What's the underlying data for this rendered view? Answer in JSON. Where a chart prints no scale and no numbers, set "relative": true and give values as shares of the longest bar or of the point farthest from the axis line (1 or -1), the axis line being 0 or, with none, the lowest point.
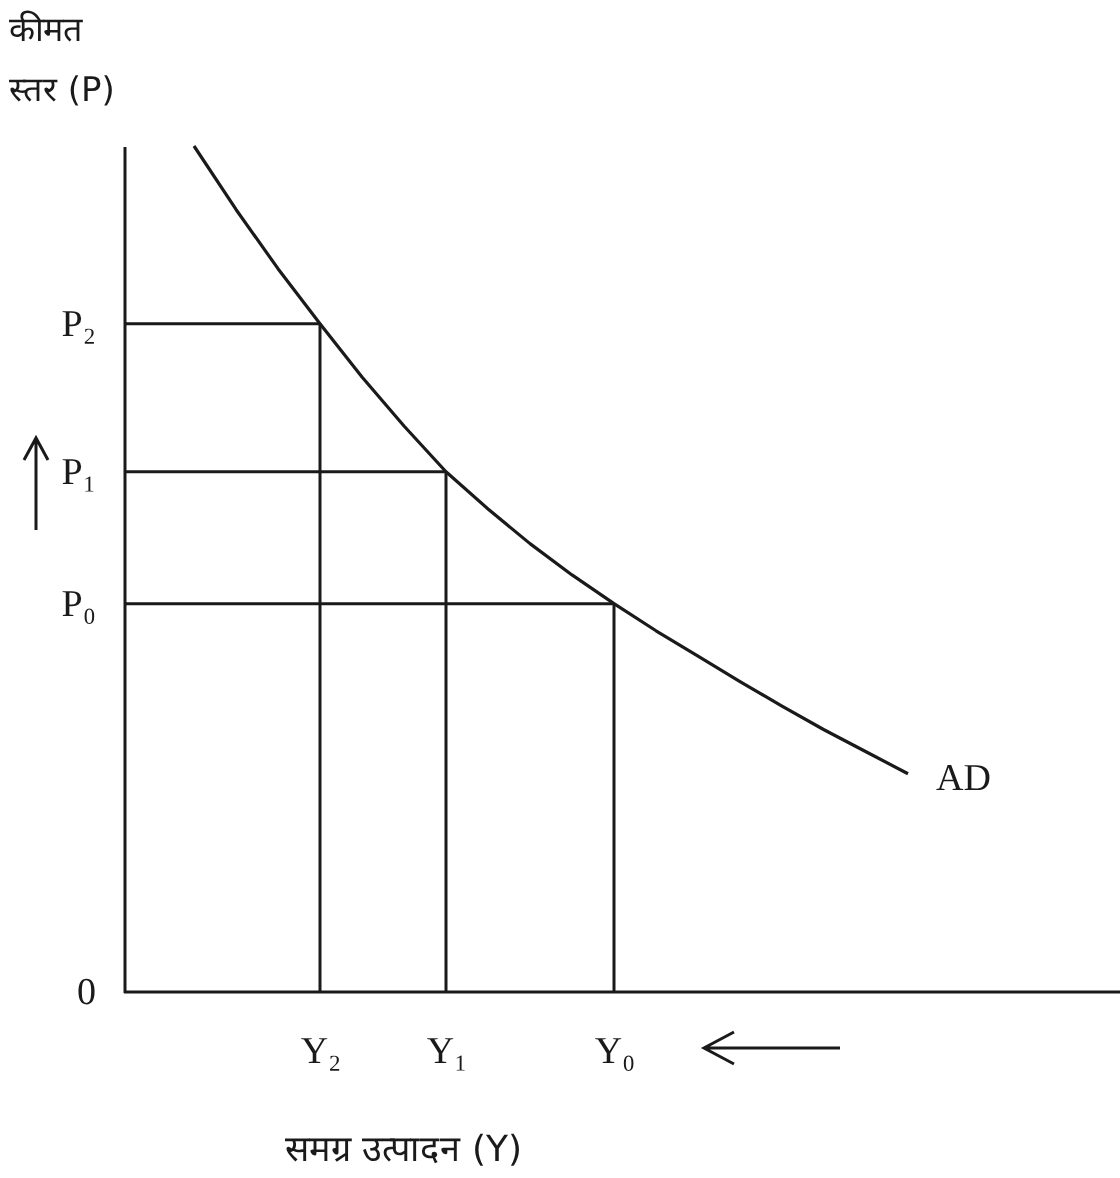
{
  "chart_data": {
    "type": "line",
    "relative": true,
    "xlabel": "समग्र उत्पादन (Y)",
    "ylabel": "कीमत स्तर (P)",
    "categories": [
      null,
      null,
      null,
      "Y₂",
      null,
      null,
      "Y₁",
      null,
      null,
      null,
      "Y₀",
      null,
      null,
      null,
      null,
      null,
      null,
      null
    ],
    "annotations": [
      "0"
    ],
    "marker": "none",
    "line_style": "solid",
    "series": [
      {
        "name": "AD",
        "color": "#1a1a1a",
        "values": [
          1,
          0.925,
          0.855,
          0.79,
          0.727,
          0.669,
          0.615,
          0.571,
          0.53,
          0.493,
          0.459,
          0.427,
          0.397,
          0.367,
          0.338,
          0.31,
          0.284,
          0.258
        ]
      }
    ],
    "ref_lines": [
      {
        "axis": "y",
        "value": 0.79,
        "label": "P₂",
        "color": "#1a1a1a"
      },
      {
        "axis": "y",
        "value": 0.615,
        "label": "P₁",
        "color": "#1a1a1a"
      },
      {
        "axis": "y",
        "value": 0.459,
        "label": "P₀",
        "color": "#1a1a1a"
      },
      {
        "axis": "x",
        "value": "Y₂",
        "label": null,
        "color": "#1a1a1a"
      },
      {
        "axis": "x",
        "value": "Y₁",
        "label": null,
        "color": "#1a1a1a"
      },
      {
        "axis": "x",
        "value": "Y₀",
        "label": null,
        "color": "#1a1a1a"
      }
    ]
  }
}
